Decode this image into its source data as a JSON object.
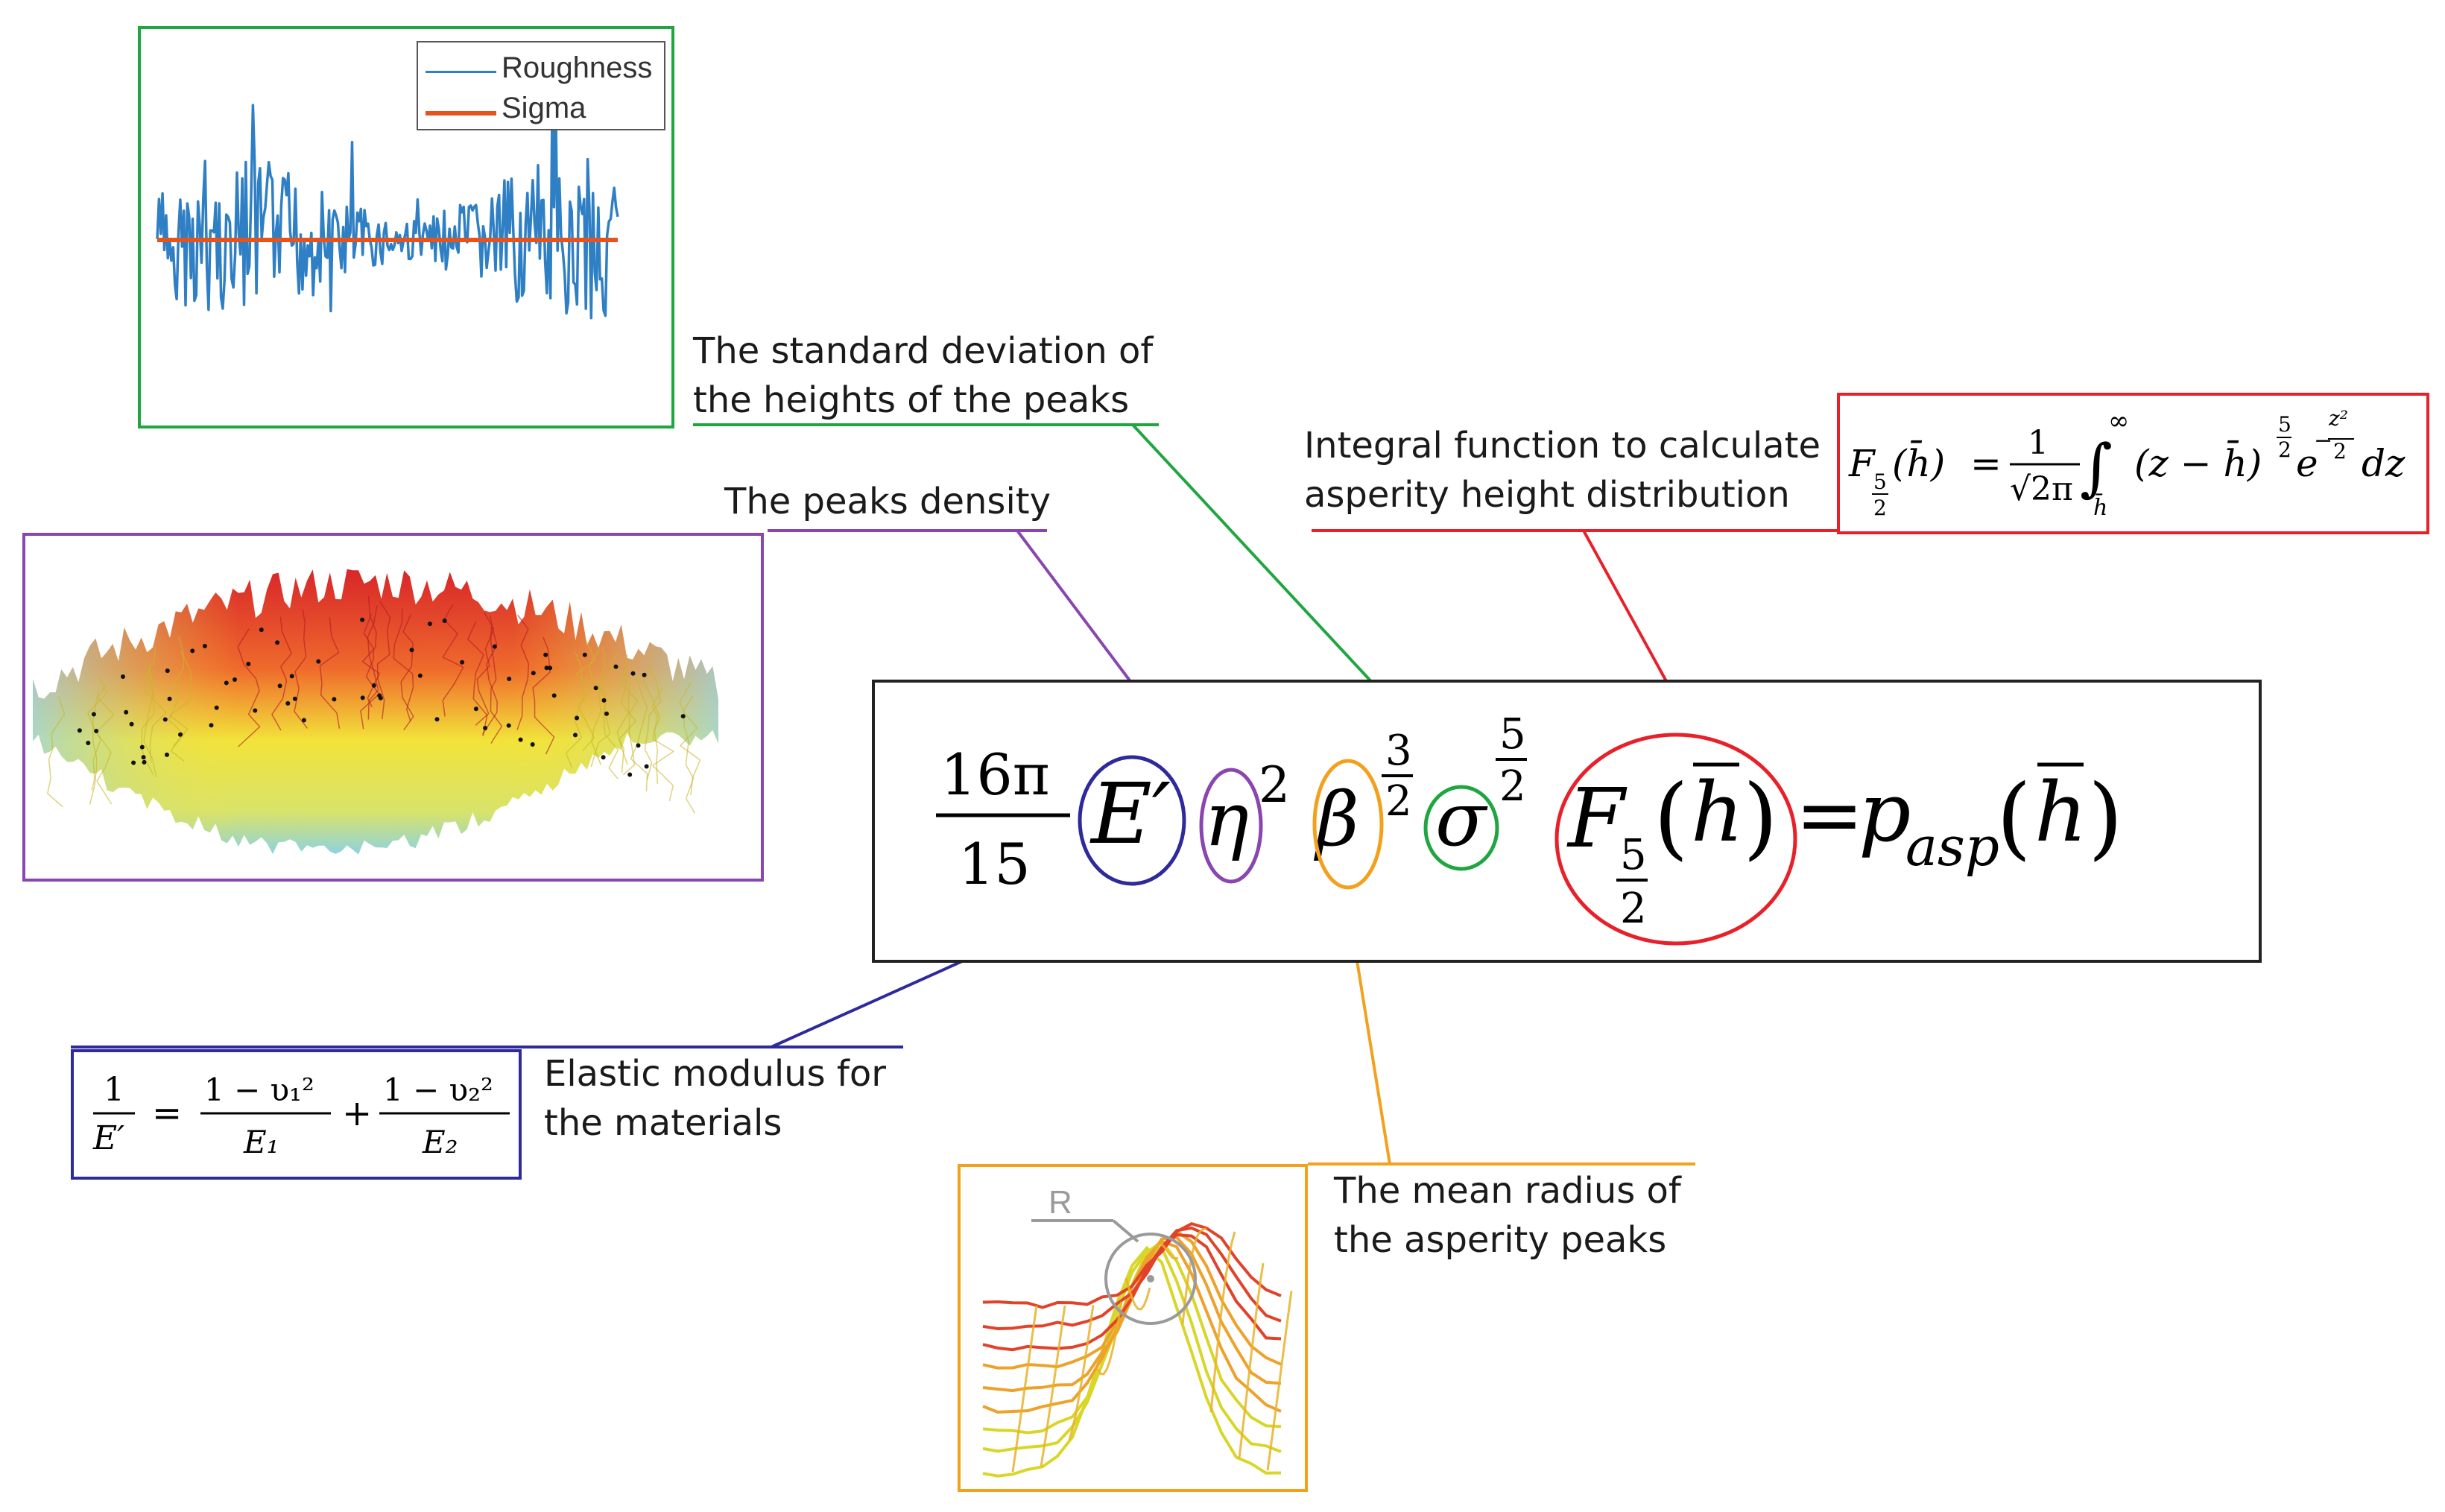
{
  "colors": {
    "green": "#1fa640",
    "purple": "#8a45b0",
    "blue": "#2f2a9c",
    "orange": "#f3a01c",
    "red": "#e8202a",
    "black": "#222222",
    "roughness": "#2f7fc4",
    "sigma": "#e4541c"
  },
  "roughness_plot": {
    "legend": {
      "roughness": "Roughness",
      "sigma": "Sigma"
    }
  },
  "annotations": {
    "std_dev": "The standard deviation of the heights of the peaks",
    "peaks_density": "The peaks density",
    "integral_function": "Integral function to calculate asperity height distribution",
    "elastic_modulus": "Elastic modulus for the materials",
    "mean_radius": "The mean radius of the asperity peaks"
  },
  "asperity_figure": {
    "radius_label": "R"
  },
  "main_equation": {
    "coef_num": "16π",
    "coef_den": "15",
    "e_prime": "E′",
    "eta": "η",
    "eta_exp": "2",
    "beta": "β",
    "beta_exp_num": "3",
    "beta_exp_den": "2",
    "sigma": "σ",
    "sigma_exp_num": "5",
    "sigma_exp_den": "2",
    "F": "F",
    "F_sub_num": "5",
    "F_sub_den": "2",
    "h_bar": "h",
    "equals": "=",
    "p": "p",
    "p_sub": "asp",
    "open_paren": "(",
    "close_paren": ")"
  },
  "integral_equation": {
    "F": "F",
    "sub_num": "5",
    "sub_den": "2",
    "arg": "(h̄)",
    "equals": "=",
    "frac_num": "1",
    "frac_den": "√2π",
    "integral": "∫",
    "upper": "∞",
    "lower": "h̄",
    "integrand": "(z − h̄)",
    "pow_num": "5",
    "pow_den": "2",
    "e": "e",
    "exp_sign": "−",
    "exp_num": "z²",
    "exp_den": "2",
    "dz": "dz"
  },
  "modulus_equation": {
    "lhs_num": "1",
    "lhs_den": "E′",
    "equals": "=",
    "t1_num": "1 − υ₁²",
    "t1_den": "E₁",
    "plus": "+",
    "t2_num": "1 − υ₂²",
    "t2_den": "E₂"
  }
}
